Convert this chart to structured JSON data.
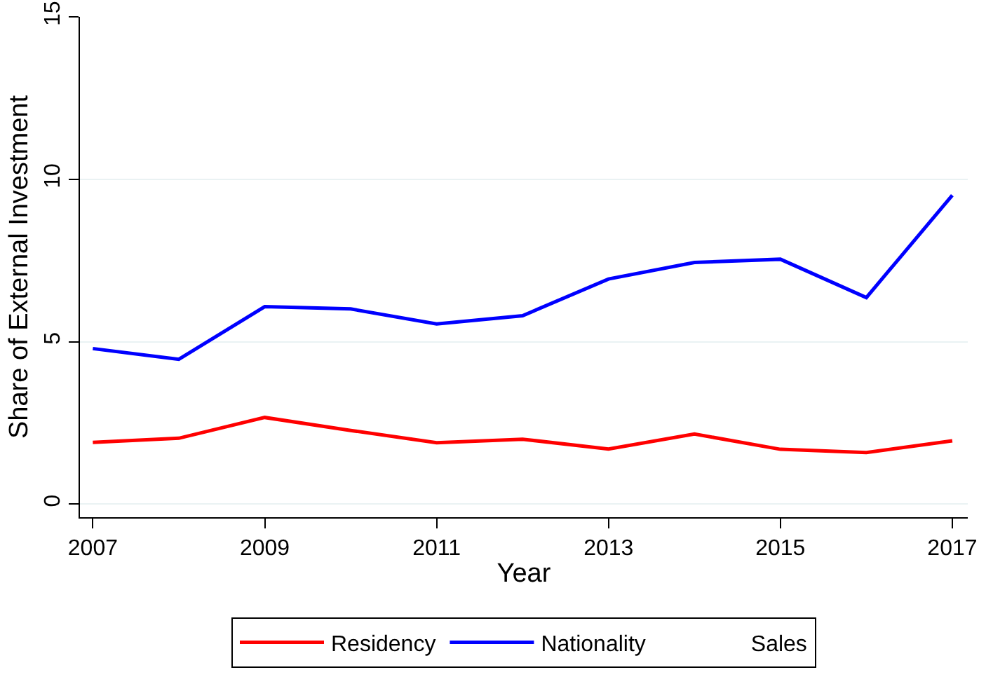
{
  "chart_data": {
    "type": "line",
    "xlabel": "Year",
    "ylabel": "Share of External Investment",
    "x": [
      2007,
      2008,
      2009,
      2010,
      2011,
      2012,
      2013,
      2014,
      2015,
      2016,
      2017
    ],
    "series": [
      {
        "name": "Residency",
        "color": "#ff0000",
        "values": [
          1.9,
          2.03,
          2.67,
          2.27,
          1.89,
          2.0,
          1.7,
          2.16,
          1.69,
          1.59,
          1.95
        ]
      },
      {
        "name": "Nationality",
        "color": "#0000ff",
        "values": [
          4.79,
          4.46,
          6.08,
          6.01,
          5.55,
          5.8,
          6.93,
          7.44,
          7.54,
          6.36,
          9.51
        ]
      },
      {
        "name": "Sales",
        "values": [
          null,
          null,
          null,
          null,
          null,
          null,
          null,
          null,
          null,
          null,
          null
        ]
      }
    ],
    "xlim": [
      2006.85,
      2017.18
    ],
    "xticks": [
      2007,
      2009,
      2011,
      2013,
      2015,
      2017
    ],
    "ylim": [
      -0.4,
      15
    ],
    "yticks": [
      0,
      5,
      10,
      15
    ],
    "grid": "y",
    "legend": "bottom",
    "marker": "none",
    "line_style": "solid"
  }
}
